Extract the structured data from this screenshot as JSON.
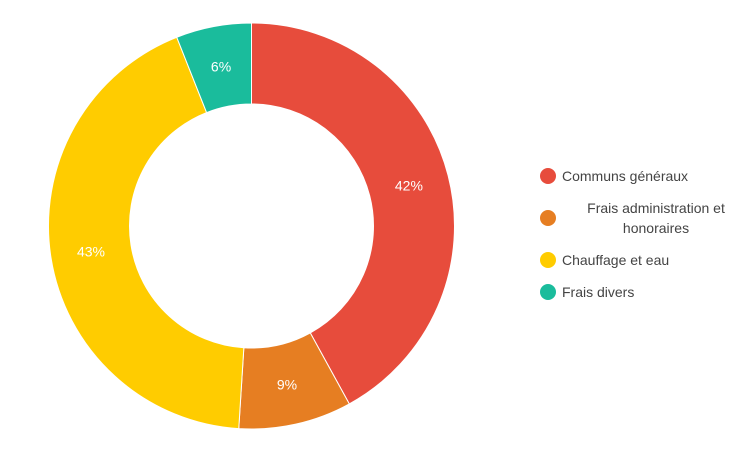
{
  "chart_data": {
    "type": "pie",
    "variant": "donut",
    "title": "",
    "categories": [
      "Communs généraux",
      "Frais administration et honoraires",
      "Chauffage et eau",
      "Frais divers"
    ],
    "values": [
      42,
      9,
      43,
      6
    ],
    "labels": [
      "42%",
      "9%",
      "43%",
      "6%"
    ],
    "colors": [
      "#e74c3c",
      "#e67e22",
      "#ffcc00",
      "#1abc9c"
    ],
    "legend_position": "right"
  }
}
